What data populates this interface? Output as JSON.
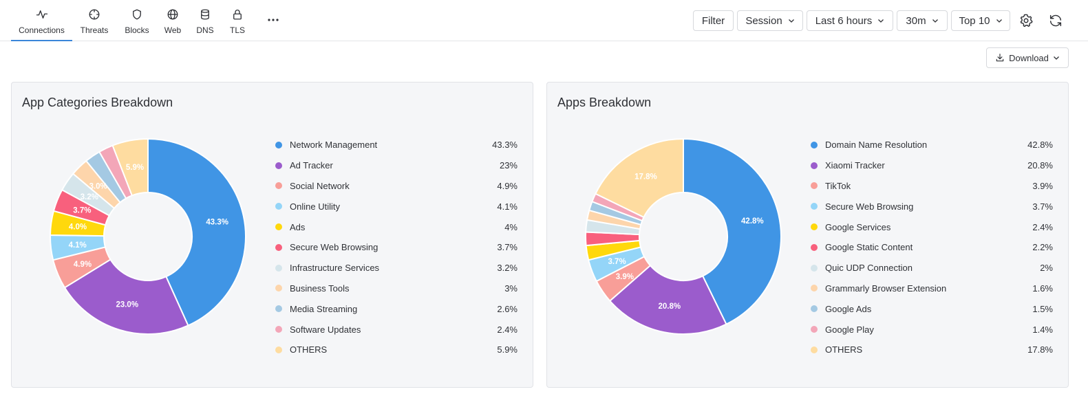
{
  "tabs": [
    {
      "label": "Connections",
      "icon": "activity-icon",
      "active": true
    },
    {
      "label": "Threats",
      "icon": "crosshair-icon",
      "active": false
    },
    {
      "label": "Blocks",
      "icon": "shield-icon",
      "active": false
    },
    {
      "label": "Web",
      "icon": "globe-icon",
      "active": false
    },
    {
      "label": "DNS",
      "icon": "database-icon",
      "active": false
    },
    {
      "label": "TLS",
      "icon": "lock-icon",
      "active": false
    }
  ],
  "toolbar": {
    "filter_label": "Filter",
    "session_label": "Session",
    "time_range_label": "Last 6 hours",
    "interval_label": "30m",
    "top_label": "Top 10"
  },
  "download_label": "Download",
  "colors": {
    "accent": "#3a86d9",
    "palette": [
      "#4095e5",
      "#9b5ccc",
      "#f89e98",
      "#94d5f8",
      "#ffd80c",
      "#f8607d",
      "#d5e5eb",
      "#fdd5ab",
      "#a4c9e3",
      "#f3a6b8",
      "#fedca0"
    ]
  },
  "panels": [
    {
      "title": "App Categories Breakdown",
      "chart_data": {
        "type": "pie",
        "labels": [
          "Network Management",
          "Ad Tracker",
          "Social Network",
          "Online Utility",
          "Ads",
          "Secure Web Browsing",
          "Infrastructure Services",
          "Business Tools",
          "Media Streaming",
          "Software Updates",
          "OTHERS"
        ],
        "values": [
          43.3,
          23.0,
          4.9,
          4.1,
          4.0,
          3.7,
          3.2,
          3.0,
          2.6,
          2.4,
          5.9
        ],
        "legend_values": [
          "43.3%",
          "23%",
          "4.9%",
          "4.1%",
          "4%",
          "3.7%",
          "3.2%",
          "3%",
          "2.6%",
          "2.4%",
          "5.9%"
        ],
        "slice_labels": [
          "43.3%",
          "23.0%",
          "4.9%",
          "4.1%",
          "4.0%",
          "3.7%",
          "3.2%",
          "3.0%",
          "",
          "",
          "5.9%"
        ]
      }
    },
    {
      "title": "Apps Breakdown",
      "chart_data": {
        "type": "pie",
        "labels": [
          "Domain Name Resolution",
          "Xiaomi Tracker",
          "TikTok",
          "Secure Web Browsing",
          "Google Services",
          "Google Static Content",
          "Quic UDP Connection",
          "Grammarly Browser Extension",
          "Google Ads",
          "Google Play",
          "OTHERS"
        ],
        "values": [
          42.8,
          20.8,
          3.9,
          3.7,
          2.4,
          2.2,
          2.0,
          1.6,
          1.5,
          1.4,
          17.8
        ],
        "legend_values": [
          "42.8%",
          "20.8%",
          "3.9%",
          "3.7%",
          "2.4%",
          "2.2%",
          "2%",
          "1.6%",
          "1.5%",
          "1.4%",
          "17.8%"
        ],
        "slice_labels": [
          "42.8%",
          "20.8%",
          "3.9%",
          "3.7%",
          "",
          "",
          "",
          "",
          "",
          "",
          "17.8%"
        ]
      }
    }
  ]
}
